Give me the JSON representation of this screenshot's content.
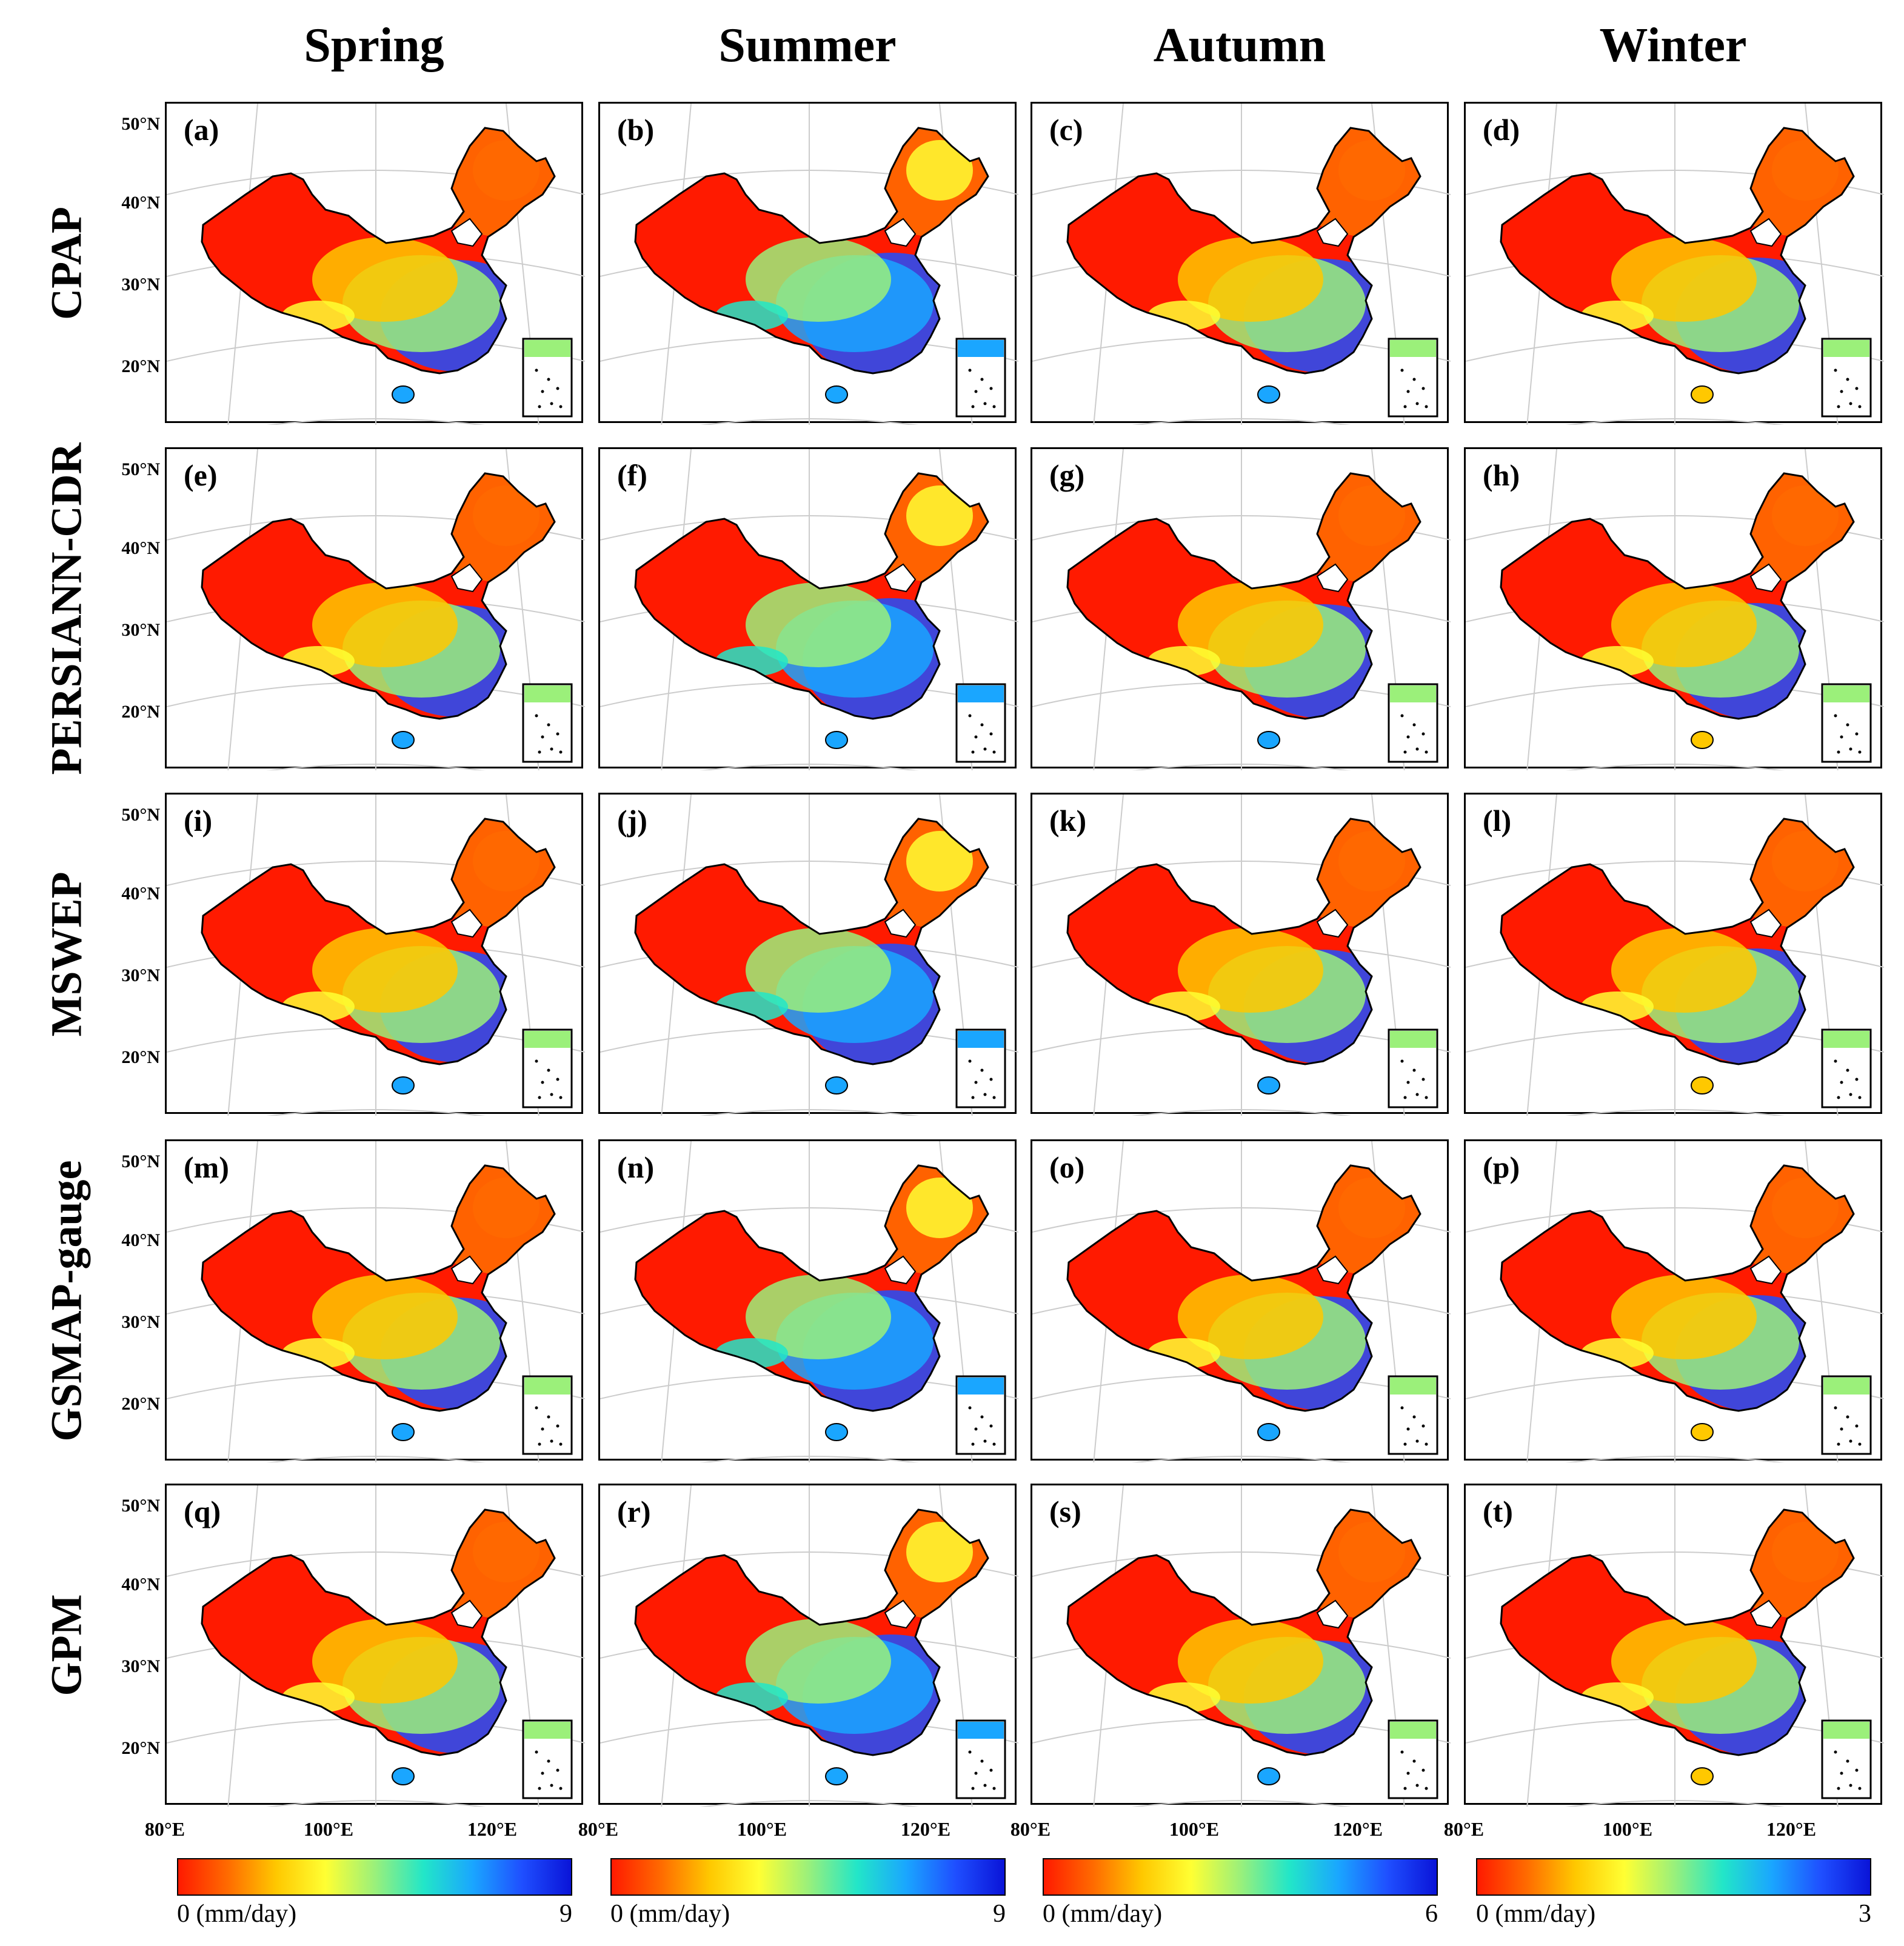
{
  "seasons": [
    "Spring",
    "Summer",
    "Autumn",
    "Winter"
  ],
  "products": [
    "CPAP",
    "PERSIANN-CDR",
    "MSWEP",
    "GSMAP-gauge",
    "GPM"
  ],
  "panel_labels": [
    "(a)",
    "(b)",
    "(c)",
    "(d)",
    "(e)",
    "(f)",
    "(g)",
    "(h)",
    "(i)",
    "(j)",
    "(k)",
    "(l)",
    "(m)",
    "(n)",
    "(o)",
    "(p)",
    "(q)",
    "(r)",
    "(s)",
    "(t)"
  ],
  "lat_labels": [
    "50°N",
    "40°N",
    "30°N",
    "20°N"
  ],
  "lon_labels": [
    "80°E",
    "100°E",
    "120°E"
  ],
  "colorbars": [
    {
      "min_label": "0 (mm/day)",
      "max_label": "9"
    },
    {
      "min_label": "0 (mm/day)",
      "max_label": "9"
    },
    {
      "min_label": "0 (mm/day)",
      "max_label": "6"
    },
    {
      "min_label": "0 (mm/day)",
      "max_label": "3"
    }
  ],
  "colors": {
    "scale": [
      "#ff1a00",
      "#ff6a00",
      "#ffc800",
      "#ffff33",
      "#9bf07a",
      "#22e6c8",
      "#1aa6ff",
      "#1f4fff",
      "#0a14d8"
    ],
    "border": "#000000",
    "graticule": "#cccccc"
  }
}
